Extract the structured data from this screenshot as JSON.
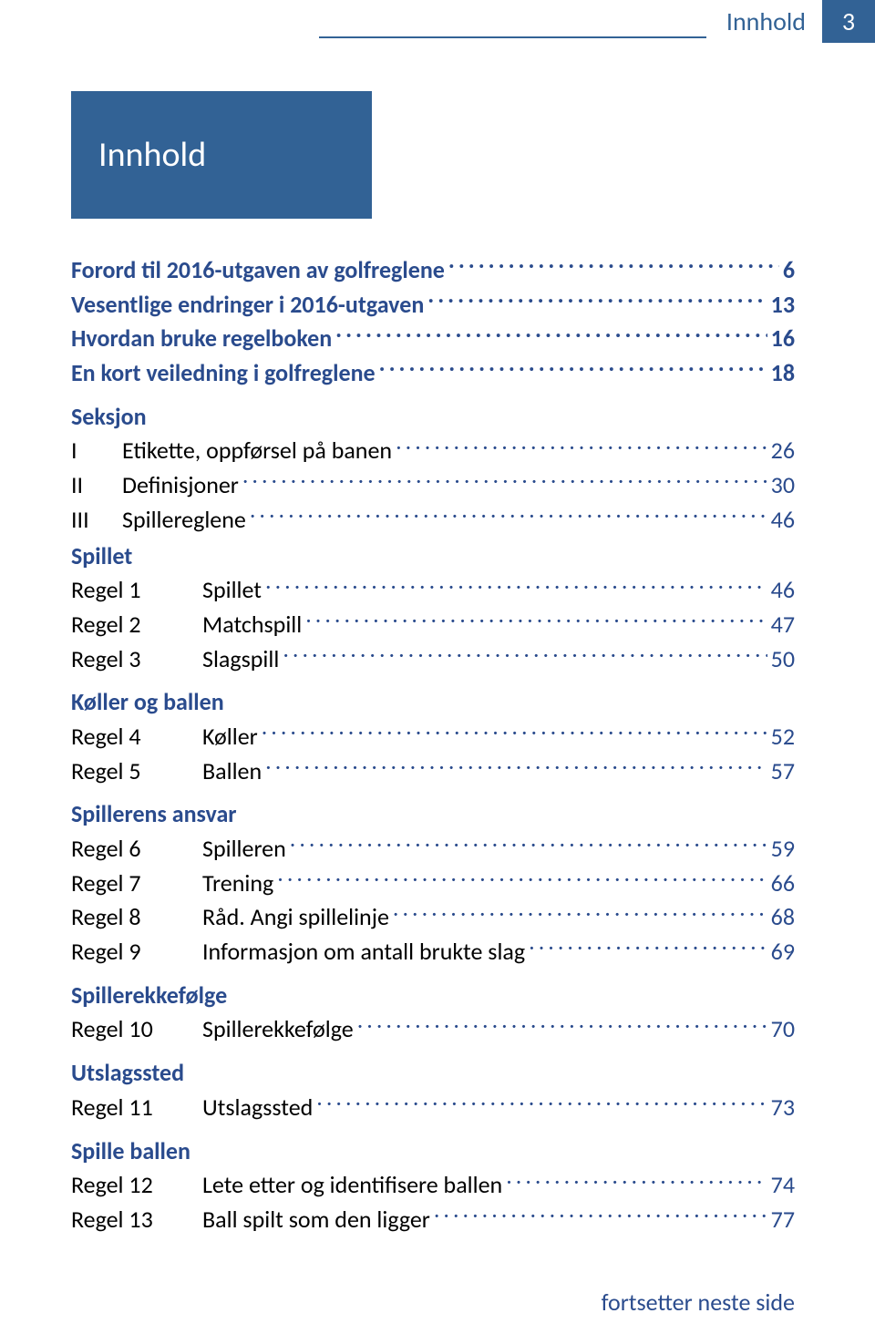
{
  "colors": {
    "accent": "#2a4b8d",
    "header_bg": "#326295",
    "text_black": "#000000",
    "white": "#ffffff"
  },
  "header": {
    "label": "Innhold",
    "page_number": "3"
  },
  "title_box": "Innhold",
  "front_matter": [
    {
      "label": "Forord til 2016-utgaven av golfreglene",
      "page": "6"
    },
    {
      "label": "Vesentlige endringer i 2016-utgaven",
      "page": "13"
    },
    {
      "label": "Hvordan bruke regelboken",
      "page": "16"
    },
    {
      "label": "En kort veiledning i golfreglene",
      "page": "18"
    }
  ],
  "seksjon_heading": "Seksjon",
  "seksjon_items": [
    {
      "num": "I",
      "label": "Etikette, oppførsel på banen",
      "page": "26"
    },
    {
      "num": "II",
      "label": "Definisjoner",
      "page": "30"
    },
    {
      "num": "III",
      "label": "Spillereglene",
      "page": "46"
    }
  ],
  "groups": [
    {
      "heading": "Spillet",
      "rules": [
        {
          "num": "Regel 1",
          "label": "Spillet",
          "page": "46"
        },
        {
          "num": "Regel 2",
          "label": "Matchspill",
          "page": "47"
        },
        {
          "num": "Regel 3",
          "label": "Slagspill",
          "page": "50"
        }
      ]
    },
    {
      "heading": "Køller og ballen",
      "rules": [
        {
          "num": "Regel 4",
          "label": "Køller",
          "page": "52"
        },
        {
          "num": "Regel 5",
          "label": "Ballen",
          "page": "57"
        }
      ]
    },
    {
      "heading": "Spillerens ansvar",
      "rules": [
        {
          "num": "Regel 6",
          "label": "Spilleren",
          "page": "59"
        },
        {
          "num": "Regel 7",
          "label": "Trening",
          "page": "66"
        },
        {
          "num": "Regel 8",
          "label": "Råd. Angi spillelinje",
          "page": "68"
        },
        {
          "num": "Regel 9",
          "label": "Informasjon om antall brukte slag",
          "page": "69"
        }
      ]
    },
    {
      "heading": "Spillerekkefølge",
      "rules": [
        {
          "num": "Regel 10",
          "label": "Spillerekkefølge",
          "page": "70"
        }
      ]
    },
    {
      "heading": "Utslagssted",
      "rules": [
        {
          "num": "Regel 11",
          "label": "Utslagssted",
          "page": "73"
        }
      ]
    },
    {
      "heading": "Spille ballen",
      "rules": [
        {
          "num": "Regel 12",
          "label": "Lete etter og identifisere ballen",
          "page": "74"
        },
        {
          "num": "Regel 13",
          "label": "Ball spilt som den ligger",
          "page": "77"
        }
      ]
    }
  ],
  "footer_note": "fortsetter neste side"
}
